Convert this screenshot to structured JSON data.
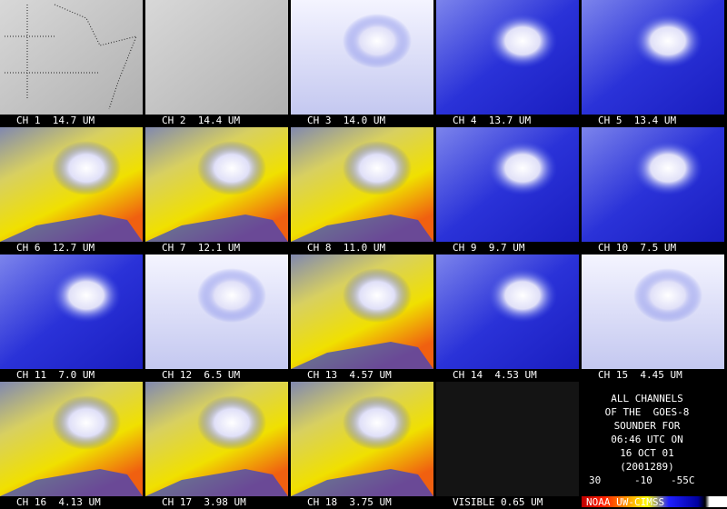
{
  "panels": [
    "CH 1  14.7 UM",
    "CH 2  14.4 UM",
    "CH 3  14.0 UM",
    "CH 4  13.7 UM",
    "CH 5  13.4 UM",
    "CH 6  12.7 UM",
    "CH 7  12.1 UM",
    "CH 8  11.0 UM",
    "CH 9  9.7 UM",
    "CH 10  7.5 UM",
    "CH 11  7.0 UM",
    "CH 12  6.5 UM",
    "CH 13  4.57 UM",
    "CH 14  4.53 UM",
    "CH 15  4.45 UM",
    "CH 16  4.13 UM",
    "CH 17  3.98 UM",
    "CH 18  3.75 UM",
    "VISIBLE 0.65 UM"
  ],
  "info": [
    "ALL CHANNELS",
    "OF THE  GOES-8",
    "SOUNDER FOR",
    "06:46 UTC ON",
    "16 OCT 01",
    "(2001289)"
  ],
  "colorbar": {
    "labels": [
      "30",
      "-10",
      "-55C"
    ],
    "credit": "NOAA UW-CIMSS"
  }
}
